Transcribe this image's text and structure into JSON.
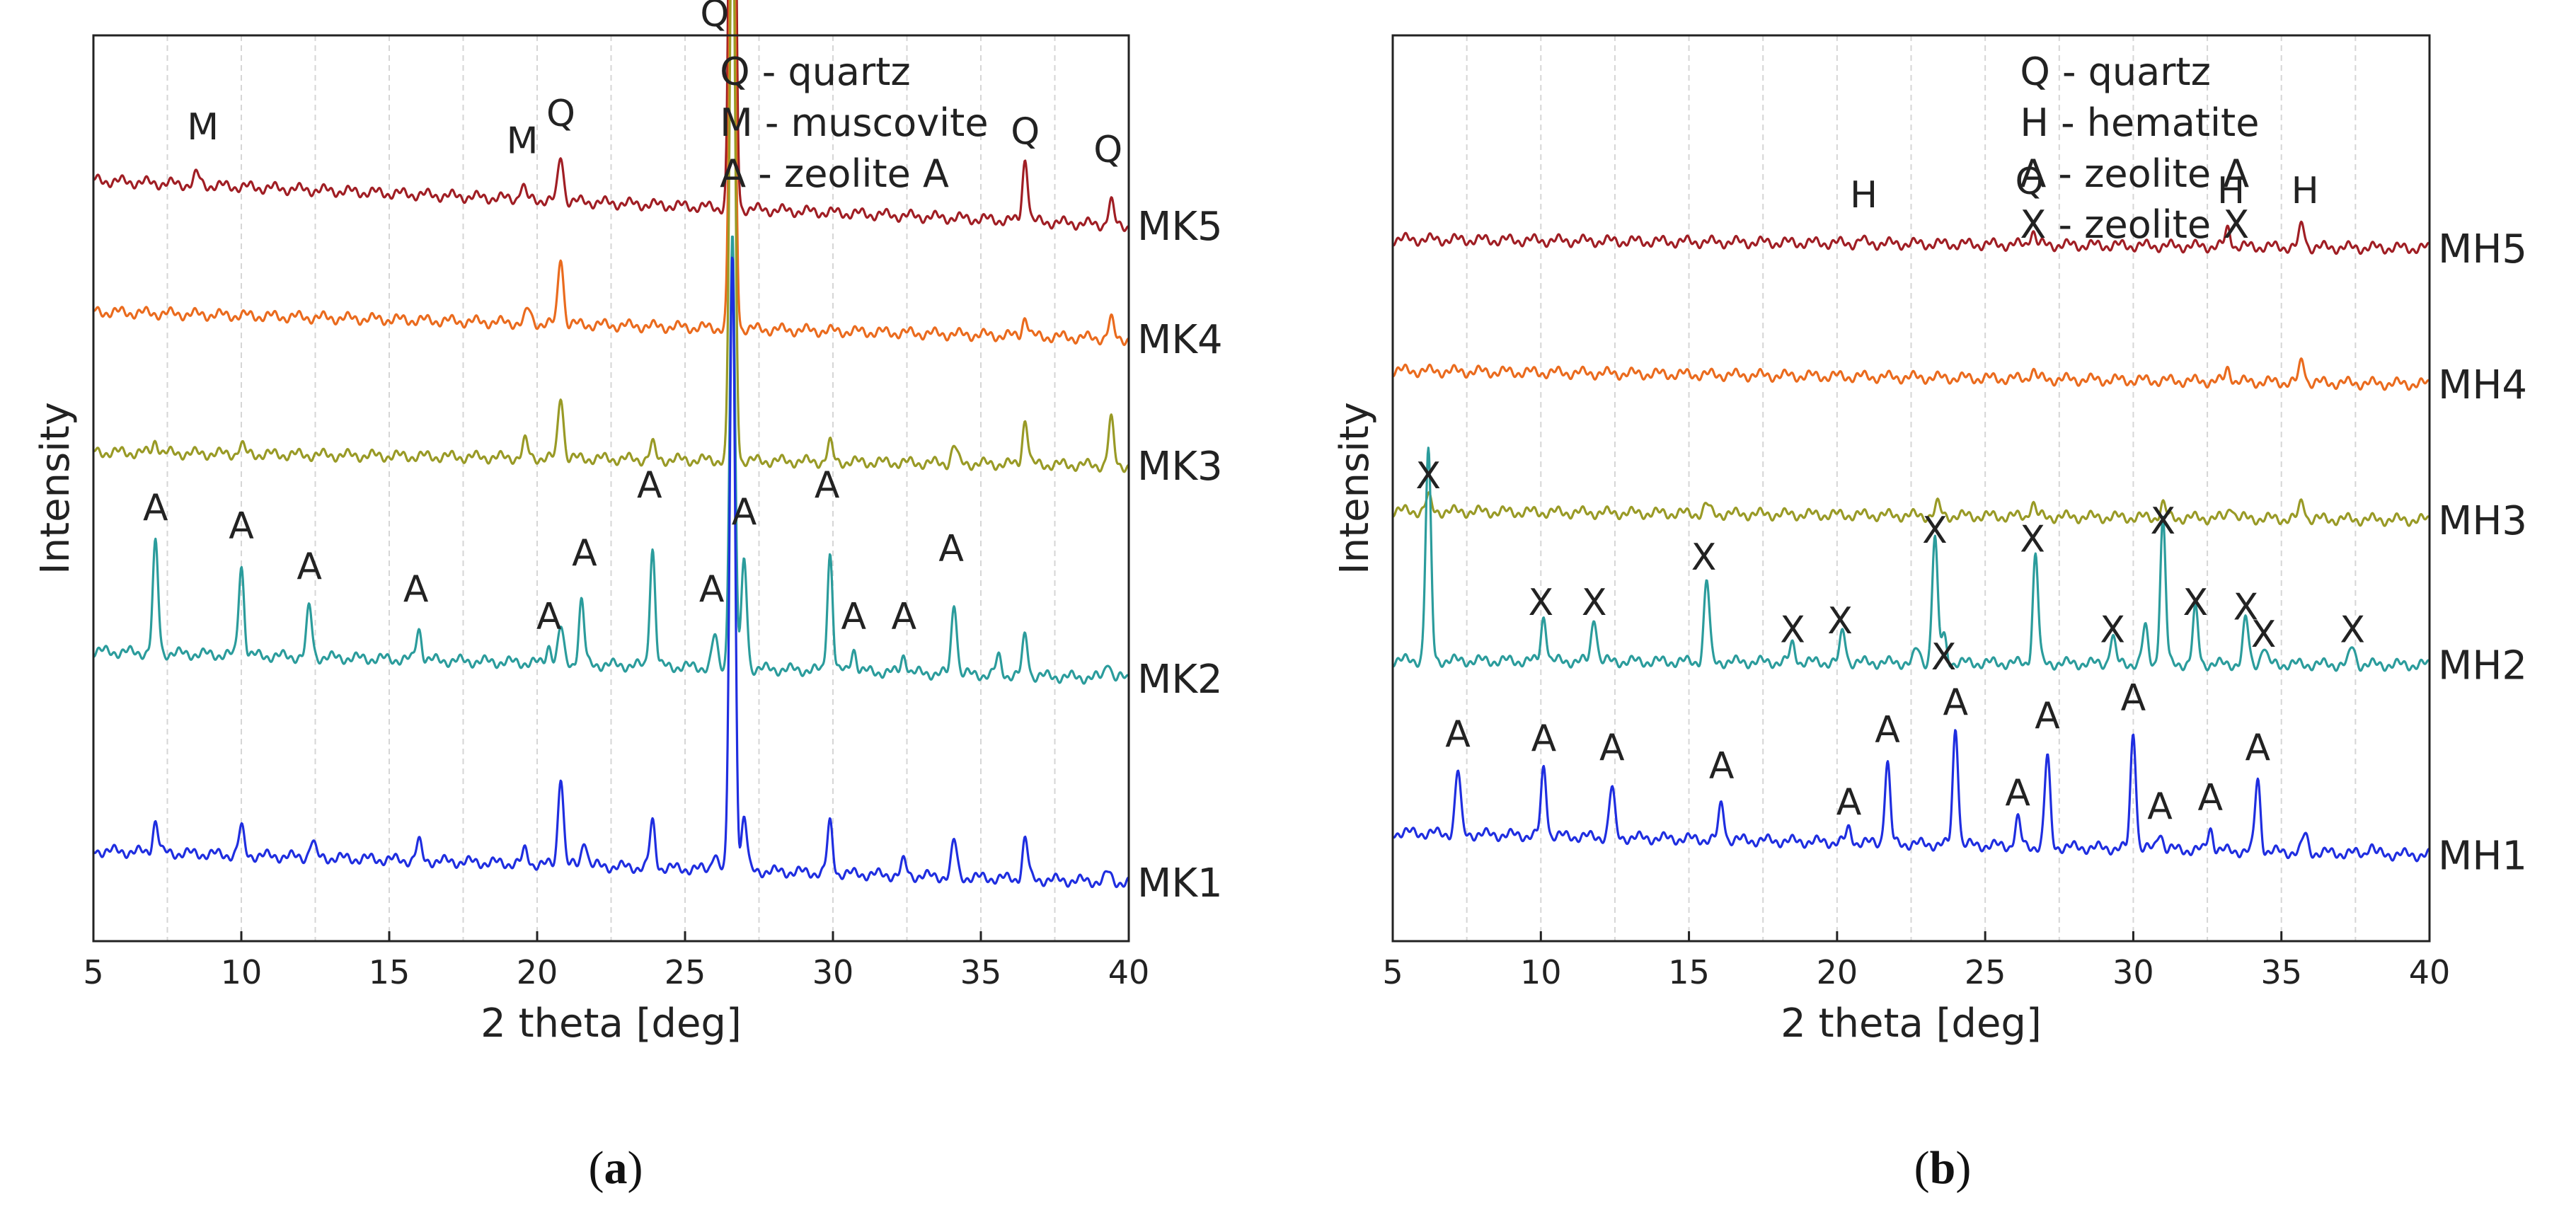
{
  "chart_data": [
    {
      "id": "a",
      "type": "line",
      "caption_letter": "a",
      "xlabel": "2 theta [deg]",
      "ylabel": "Intensity",
      "xlim": [
        5,
        40
      ],
      "xticks": [
        5,
        10,
        15,
        20,
        25,
        30,
        35,
        40
      ],
      "grid": "vertical dashed",
      "legend": [
        "Q - quartz",
        "M - muscovite",
        "A - zeolite A"
      ],
      "series": [
        {
          "name": "MK5",
          "color": "#a01e24",
          "baseline": 0.84,
          "end": 0.79,
          "peaks": [
            [
              8.5,
              0.012
            ],
            [
              19.5,
              0.015
            ],
            [
              20.8,
              0.05
            ],
            [
              26.6,
              0.9
            ],
            [
              36.5,
              0.07
            ],
            [
              39.4,
              0.025
            ]
          ]
        },
        {
          "name": "MK4",
          "color": "#ea6b1e",
          "baseline": 0.695,
          "end": 0.665,
          "peaks": [
            [
              19.7,
              0.015
            ],
            [
              20.8,
              0.075
            ],
            [
              26.6,
              0.64
            ],
            [
              36.5,
              0.022
            ],
            [
              39.4,
              0.02
            ]
          ]
        },
        {
          "name": "MK3",
          "color": "#999a26",
          "baseline": 0.54,
          "end": 0.525,
          "peaks": [
            [
              7.1,
              0.014
            ],
            [
              10.0,
              0.01
            ],
            [
              19.6,
              0.018
            ],
            [
              20.8,
              0.07
            ],
            [
              23.9,
              0.016
            ],
            [
              26.6,
              0.66
            ],
            [
              29.9,
              0.02
            ],
            [
              34.1,
              0.02
            ],
            [
              36.5,
              0.05
            ],
            [
              39.4,
              0.05
            ]
          ]
        },
        {
          "name": "MK2",
          "color": "#2b9c9c",
          "baseline": 0.32,
          "end": 0.29,
          "peaks": [
            [
              7.1,
              0.12
            ],
            [
              10.0,
              0.1
            ],
            [
              12.3,
              0.055
            ],
            [
              16.0,
              0.035
            ],
            [
              20.4,
              0.02
            ],
            [
              20.8,
              0.04
            ],
            [
              21.5,
              0.07
            ],
            [
              23.9,
              0.13
            ],
            [
              26.0,
              0.035
            ],
            [
              26.6,
              0.48
            ],
            [
              27.0,
              0.12
            ],
            [
              29.9,
              0.13
            ],
            [
              30.7,
              0.025
            ],
            [
              32.4,
              0.02
            ],
            [
              34.1,
              0.08
            ],
            [
              35.6,
              0.02
            ],
            [
              36.5,
              0.045
            ],
            [
              39.3,
              0.02
            ]
          ]
        },
        {
          "name": "MK1",
          "color": "#1f2ee0",
          "baseline": 0.1,
          "end": 0.065,
          "peaks": [
            [
              7.1,
              0.035
            ],
            [
              10.0,
              0.03
            ],
            [
              12.4,
              0.018
            ],
            [
              16.0,
              0.02
            ],
            [
              19.6,
              0.015
            ],
            [
              20.8,
              0.1
            ],
            [
              21.6,
              0.03
            ],
            [
              23.9,
              0.05
            ],
            [
              26.0,
              0.02
            ],
            [
              26.6,
              0.68
            ],
            [
              27.0,
              0.06
            ],
            [
              29.9,
              0.055
            ],
            [
              32.4,
              0.015
            ],
            [
              34.1,
              0.04
            ],
            [
              36.5,
              0.045
            ],
            [
              39.3,
              0.01
            ]
          ]
        }
      ],
      "annotations": [
        {
          "text": "M",
          "x": 8.7,
          "y": 0.885
        },
        {
          "text": "M",
          "x": 19.5,
          "y": 0.87
        },
        {
          "text": "Q",
          "x": 20.8,
          "y": 0.9
        },
        {
          "text": "Q",
          "x": 26.0,
          "y": 1.01
        },
        {
          "text": "Q",
          "x": 36.5,
          "y": 0.88
        },
        {
          "text": "Q",
          "x": 39.3,
          "y": 0.86
        },
        {
          "text": "A",
          "x": 7.1,
          "y": 0.465
        },
        {
          "text": "A",
          "x": 10.0,
          "y": 0.445
        },
        {
          "text": "A",
          "x": 12.3,
          "y": 0.4
        },
        {
          "text": "A",
          "x": 15.9,
          "y": 0.375
        },
        {
          "text": "A",
          "x": 20.4,
          "y": 0.345
        },
        {
          "text": "A",
          "x": 21.6,
          "y": 0.415
        },
        {
          "text": "A",
          "x": 23.8,
          "y": 0.49
        },
        {
          "text": "A",
          "x": 25.9,
          "y": 0.375
        },
        {
          "text": "A",
          "x": 27.0,
          "y": 0.46
        },
        {
          "text": "A",
          "x": 29.8,
          "y": 0.49
        },
        {
          "text": "A",
          "x": 30.7,
          "y": 0.345
        },
        {
          "text": "A",
          "x": 32.4,
          "y": 0.345
        },
        {
          "text": "A",
          "x": 34.0,
          "y": 0.42
        }
      ]
    },
    {
      "id": "b",
      "type": "line",
      "caption_letter": "b",
      "xlabel": "2 theta [deg]",
      "ylabel": "Intensity",
      "xlim": [
        5,
        40
      ],
      "xticks": [
        5,
        10,
        15,
        20,
        25,
        30,
        35,
        40
      ],
      "grid": "vertical dashed",
      "legend": [
        "Q - quartz",
        "H - hematite",
        "A - zeolite A",
        "X - zeolite X"
      ],
      "series": [
        {
          "name": "MH5",
          "color": "#a01e24",
          "baseline": 0.775,
          "end": 0.765,
          "peaks": [
            [
              20.8,
              0.004
            ],
            [
              26.6,
              0.016
            ],
            [
              33.2,
              0.02
            ],
            [
              35.7,
              0.025
            ]
          ]
        },
        {
          "name": "MH4",
          "color": "#ea6b1e",
          "baseline": 0.63,
          "end": 0.615,
          "peaks": [
            [
              26.6,
              0.01
            ],
            [
              33.2,
              0.015
            ],
            [
              35.7,
              0.025
            ]
          ]
        },
        {
          "name": "MH3",
          "color": "#999a26",
          "baseline": 0.475,
          "end": 0.465,
          "peaks": [
            [
              6.2,
              0.015
            ],
            [
              15.6,
              0.01
            ],
            [
              23.4,
              0.012
            ],
            [
              26.6,
              0.015
            ],
            [
              31.0,
              0.015
            ],
            [
              33.3,
              0.015
            ],
            [
              35.7,
              0.02
            ]
          ]
        },
        {
          "name": "MH2",
          "color": "#2b9c9c",
          "baseline": 0.31,
          "end": 0.305,
          "peaks": [
            [
              6.2,
              0.23
            ],
            [
              10.1,
              0.05
            ],
            [
              11.8,
              0.05
            ],
            [
              15.6,
              0.09
            ],
            [
              18.5,
              0.02
            ],
            [
              20.2,
              0.035
            ],
            [
              22.7,
              0.015
            ],
            [
              23.3,
              0.14
            ],
            [
              23.6,
              0.03
            ],
            [
              26.7,
              0.12
            ],
            [
              29.3,
              0.03
            ],
            [
              30.4,
              0.04
            ],
            [
              31.0,
              0.16
            ],
            [
              32.1,
              0.06
            ],
            [
              33.8,
              0.05
            ],
            [
              34.4,
              0.02
            ],
            [
              37.4,
              0.02
            ]
          ]
        },
        {
          "name": "MH1",
          "color": "#1f2ee0",
          "baseline": 0.12,
          "end": 0.095,
          "peaks": [
            [
              7.2,
              0.07
            ],
            [
              10.1,
              0.075
            ],
            [
              12.4,
              0.055
            ],
            [
              16.1,
              0.04
            ],
            [
              20.4,
              0.015
            ],
            [
              21.7,
              0.09
            ],
            [
              24.0,
              0.13
            ],
            [
              26.1,
              0.03
            ],
            [
              27.1,
              0.1
            ],
            [
              30.0,
              0.13
            ],
            [
              30.9,
              0.02
            ],
            [
              32.6,
              0.025
            ],
            [
              34.2,
              0.08
            ],
            [
              35.8,
              0.02
            ],
            [
              38.0,
              0.01
            ]
          ]
        }
      ],
      "annotations": [
        {
          "text": "H",
          "x": 20.9,
          "y": 0.81
        },
        {
          "text": "Q",
          "x": 26.5,
          "y": 0.825
        },
        {
          "text": "H",
          "x": 33.3,
          "y": 0.815
        },
        {
          "text": "H",
          "x": 35.8,
          "y": 0.815
        },
        {
          "text": "X",
          "x": 6.2,
          "y": 0.5
        },
        {
          "text": "X",
          "x": 10.0,
          "y": 0.36
        },
        {
          "text": "X",
          "x": 11.8,
          "y": 0.36
        },
        {
          "text": "X",
          "x": 15.5,
          "y": 0.41
        },
        {
          "text": "X",
          "x": 18.5,
          "y": 0.33
        },
        {
          "text": "X",
          "x": 20.1,
          "y": 0.34
        },
        {
          "text": "X",
          "x": 23.3,
          "y": 0.44
        },
        {
          "text": "X",
          "x": 23.6,
          "y": 0.3
        },
        {
          "text": "X",
          "x": 26.6,
          "y": 0.43
        },
        {
          "text": "X",
          "x": 29.3,
          "y": 0.33
        },
        {
          "text": "X",
          "x": 31.0,
          "y": 0.45
        },
        {
          "text": "X",
          "x": 32.1,
          "y": 0.36
        },
        {
          "text": "X",
          "x": 33.8,
          "y": 0.355
        },
        {
          "text": "X",
          "x": 34.4,
          "y": 0.325
        },
        {
          "text": "X",
          "x": 37.4,
          "y": 0.33
        },
        {
          "text": "A",
          "x": 7.2,
          "y": 0.215
        },
        {
          "text": "A",
          "x": 10.1,
          "y": 0.21
        },
        {
          "text": "A",
          "x": 12.4,
          "y": 0.2
        },
        {
          "text": "A",
          "x": 16.1,
          "y": 0.18
        },
        {
          "text": "A",
          "x": 20.4,
          "y": 0.14
        },
        {
          "text": "A",
          "x": 21.7,
          "y": 0.22
        },
        {
          "text": "A",
          "x": 24.0,
          "y": 0.25
        },
        {
          "text": "A",
          "x": 26.1,
          "y": 0.15
        },
        {
          "text": "A",
          "x": 27.1,
          "y": 0.235
        },
        {
          "text": "A",
          "x": 30.0,
          "y": 0.255
        },
        {
          "text": "A",
          "x": 30.9,
          "y": 0.135
        },
        {
          "text": "A",
          "x": 32.6,
          "y": 0.145
        },
        {
          "text": "A",
          "x": 34.2,
          "y": 0.2
        }
      ]
    }
  ]
}
